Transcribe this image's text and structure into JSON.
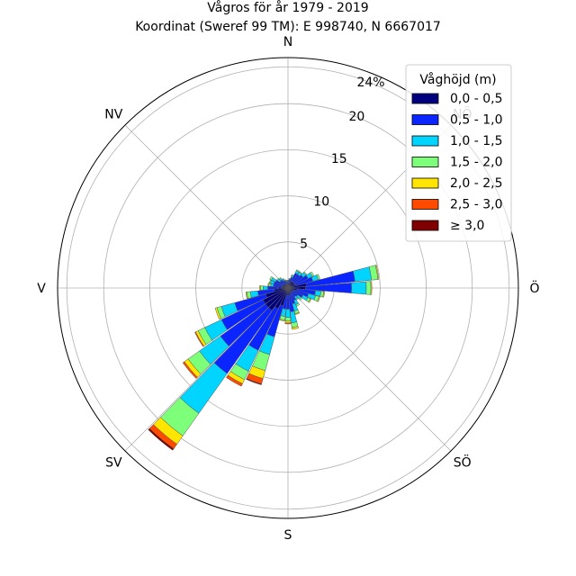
{
  "chart_data": {
    "type": "windrose",
    "title": "Vågros för år 1979 - 2019",
    "subtitle": "Koordinat (Sweref 99 TM): E 998740, N 6667017",
    "directions": [
      "N",
      "NV",
      "V",
      "SV",
      "S",
      "SÖ",
      "Ö",
      "NÖ"
    ],
    "radial_ticks": [
      "5",
      "10",
      "15",
      "20",
      "24%"
    ],
    "radial_values": [
      5,
      10,
      15,
      20,
      24
    ],
    "rmax": 25,
    "legend": {
      "title": "Våghöjd (m)",
      "position": "top-right",
      "entries": [
        "0,0 - 0,5",
        "0,5 - 1,0",
        "1,0 - 1,5",
        "1,5 - 2,0",
        "2,0 - 2,5",
        "2,5 - 3,0",
        "≥ 3,0"
      ]
    },
    "colors": [
      "#00007f",
      "#0a25ff",
      "#00d4ff",
      "#7dff7a",
      "#ffe500",
      "#ff4a00",
      "#7f0000"
    ],
    "sector_width_deg": 10,
    "sectors": [
      {
        "az": 0,
        "values": [
          0.4,
          0.3,
          0.1,
          0.05,
          0,
          0,
          0
        ]
      },
      {
        "az": 10,
        "values": [
          0.5,
          0.4,
          0.1,
          0.05,
          0,
          0,
          0
        ]
      },
      {
        "az": 20,
        "values": [
          0.6,
          0.6,
          0.2,
          0.1,
          0,
          0,
          0
        ]
      },
      {
        "az": 30,
        "values": [
          0.8,
          1.0,
          0.3,
          0.1,
          0,
          0,
          0
        ]
      },
      {
        "az": 40,
        "values": [
          0.8,
          1.0,
          0.3,
          0.1,
          0,
          0,
          0
        ]
      },
      {
        "az": 50,
        "values": [
          0.8,
          1.2,
          0.4,
          0.1,
          0,
          0,
          0
        ]
      },
      {
        "az": 60,
        "values": [
          0.8,
          1.6,
          0.5,
          0.2,
          0,
          0,
          0
        ]
      },
      {
        "az": 70,
        "values": [
          0.9,
          1.9,
          0.6,
          0.2,
          0,
          0,
          0
        ]
      },
      {
        "az": 80,
        "values": [
          2.0,
          5.3,
          1.8,
          0.7,
          0.1,
          0,
          0
        ]
      },
      {
        "az": 90,
        "values": [
          1.9,
          5.0,
          1.6,
          0.5,
          0.1,
          0,
          0
        ]
      },
      {
        "az": 100,
        "values": [
          1.0,
          2.0,
          0.6,
          0.3,
          0.1,
          0,
          0
        ]
      },
      {
        "az": 110,
        "values": [
          0.7,
          1.6,
          0.8,
          0.4,
          0.1,
          0,
          0
        ]
      },
      {
        "az": 120,
        "values": [
          0.6,
          1.2,
          0.6,
          0.3,
          0.1,
          0,
          0
        ]
      },
      {
        "az": 130,
        "values": [
          0.5,
          0.8,
          0.4,
          0.2,
          0,
          0,
          0
        ]
      },
      {
        "az": 140,
        "values": [
          0.5,
          0.7,
          0.3,
          0.1,
          0,
          0,
          0
        ]
      },
      {
        "az": 150,
        "values": [
          0.5,
          1.0,
          0.5,
          0.2,
          0,
          0,
          0
        ]
      },
      {
        "az": 160,
        "values": [
          0.6,
          1.2,
          0.8,
          0.3,
          0.1,
          0,
          0
        ]
      },
      {
        "az": 170,
        "values": [
          0.8,
          1.8,
          1.2,
          0.5,
          0.2,
          0,
          0
        ]
      },
      {
        "az": 180,
        "values": [
          0.8,
          1.5,
          0.9,
          0.4,
          0.2,
          0.1,
          0
        ]
      },
      {
        "az": 190,
        "values": [
          0.8,
          1.5,
          0.8,
          0.4,
          0.1,
          0,
          0
        ]
      },
      {
        "az": 200,
        "values": [
          2.0,
          3.5,
          2.0,
          1.8,
          0.9,
          0.6,
          0.1
        ]
      },
      {
        "az": 210,
        "values": [
          2.5,
          5.0,
          2.5,
          1.0,
          0.5,
          0.3,
          0
        ]
      },
      {
        "az": 220,
        "values": [
          3.0,
          8.4,
          5.3,
          3.0,
          1.1,
          0.6,
          0.2
        ]
      },
      {
        "az": 230,
        "values": [
          3.0,
          6.0,
          2.8,
          1.5,
          0.5,
          0.2,
          0
        ]
      },
      {
        "az": 240,
        "values": [
          3.0,
          5.0,
          2.0,
          0.8,
          0.3,
          0.1,
          0
        ]
      },
      {
        "az": 250,
        "values": [
          2.5,
          3.5,
          1.5,
          0.5,
          0.2,
          0,
          0
        ]
      },
      {
        "az": 260,
        "values": [
          1.5,
          1.8,
          0.8,
          0.4,
          0.1,
          0,
          0
        ]
      },
      {
        "az": 270,
        "values": [
          1.0,
          1.2,
          0.5,
          0.3,
          0.1,
          0,
          0
        ]
      },
      {
        "az": 280,
        "values": [
          0.6,
          1.0,
          0.3,
          0.2,
          0.1,
          0,
          0
        ]
      },
      {
        "az": 290,
        "values": [
          0.6,
          1.0,
          0.4,
          0.1,
          0,
          0,
          0
        ]
      },
      {
        "az": 300,
        "values": [
          0.6,
          0.9,
          0.5,
          0.2,
          0,
          0,
          0
        ]
      },
      {
        "az": 310,
        "values": [
          0.5,
          0.6,
          0.3,
          0.1,
          0,
          0,
          0
        ]
      },
      {
        "az": 320,
        "values": [
          0.5,
          0.6,
          0.2,
          0.1,
          0,
          0,
          0
        ]
      },
      {
        "az": 330,
        "values": [
          0.4,
          0.5,
          0.2,
          0.05,
          0,
          0,
          0
        ]
      },
      {
        "az": 340,
        "values": [
          0.4,
          0.4,
          0.1,
          0.05,
          0,
          0,
          0
        ]
      },
      {
        "az": 350,
        "values": [
          0.4,
          0.3,
          0.1,
          0.05,
          0,
          0,
          0
        ]
      }
    ]
  }
}
